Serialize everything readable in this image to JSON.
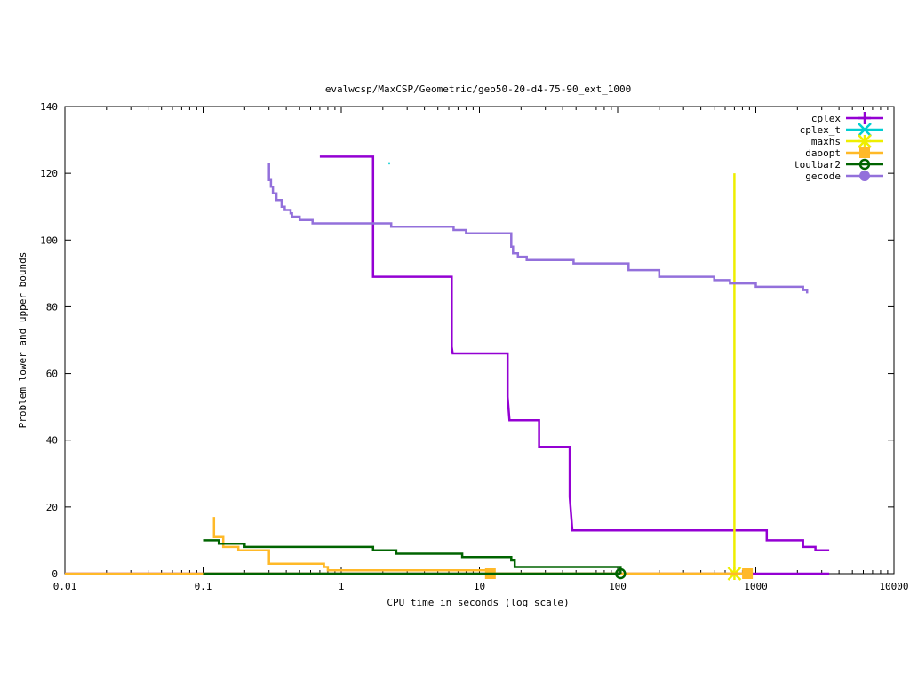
{
  "chart_data": {
    "type": "line",
    "title": "evalwcsp/MaxCSP/Geometric/geo50-20-d4-75-90_ext_1000",
    "xlabel": "CPU time in seconds (log scale)",
    "ylabel": "Problem lower and upper bounds",
    "xscale": "log",
    "xlim": [
      0.01,
      10000
    ],
    "ylim": [
      0,
      140
    ],
    "xticks": [
      {
        "value": 0.01,
        "label": "0.01"
      },
      {
        "value": 0.1,
        "label": "0.1"
      },
      {
        "value": 1,
        "label": "1"
      },
      {
        "value": 10,
        "label": "10"
      },
      {
        "value": 100,
        "label": "100"
      },
      {
        "value": 1000,
        "label": "1000"
      },
      {
        "value": 10000,
        "label": "10000"
      }
    ],
    "yticks": [
      {
        "value": 0,
        "label": "0"
      },
      {
        "value": 20,
        "label": "20"
      },
      {
        "value": 40,
        "label": "40"
      },
      {
        "value": 60,
        "label": "60"
      },
      {
        "value": 80,
        "label": "80"
      },
      {
        "value": 100,
        "label": "100"
      },
      {
        "value": 120,
        "label": "120"
      },
      {
        "value": 140,
        "label": "140"
      }
    ],
    "grid": false,
    "legend_position": "top-right",
    "series": [
      {
        "name": "cplex",
        "color": "#9400D3",
        "marker": "plus",
        "upper": [
          [
            0.7,
            125
          ],
          [
            1.7,
            125
          ],
          [
            1.7,
            89
          ],
          [
            6.3,
            89
          ],
          [
            6.3,
            68
          ],
          [
            6.4,
            66
          ],
          [
            16,
            66
          ],
          [
            16,
            53
          ],
          [
            16.5,
            46
          ],
          [
            27,
            46
          ],
          [
            27,
            38
          ],
          [
            45,
            38
          ],
          [
            45,
            23
          ],
          [
            47,
            13
          ],
          [
            1200,
            13
          ],
          [
            1200,
            10
          ],
          [
            2200,
            10
          ],
          [
            2200,
            8
          ],
          [
            2700,
            8
          ],
          [
            2700,
            7
          ],
          [
            3400,
            7
          ]
        ],
        "lower": [
          [
            0.01,
            0
          ],
          [
            3400,
            0
          ]
        ],
        "markers": []
      },
      {
        "name": "cplex_t",
        "color": "#00CED1",
        "marker": "cross",
        "upper": [
          [
            2.2,
            123
          ],
          [
            2.25,
            123
          ]
        ],
        "lower": [],
        "markers": []
      },
      {
        "name": "maxhs",
        "color": "#EEEE00",
        "marker": "asterisk",
        "upper": [
          [
            700,
            120
          ],
          [
            700,
            0
          ]
        ],
        "lower": [],
        "markers": [
          [
            700,
            0
          ]
        ]
      },
      {
        "name": "daoopt",
        "color": "#FFB928",
        "marker": "square",
        "upper": [
          [
            0.12,
            17
          ],
          [
            0.12,
            11
          ],
          [
            0.14,
            11
          ],
          [
            0.14,
            8
          ],
          [
            0.18,
            8
          ],
          [
            0.18,
            7
          ],
          [
            0.3,
            7
          ],
          [
            0.3,
            3
          ],
          [
            0.75,
            3
          ],
          [
            0.75,
            2
          ],
          [
            0.8,
            2
          ],
          [
            0.8,
            1
          ],
          [
            12,
            1
          ],
          [
            12,
            0
          ],
          [
            870,
            0
          ]
        ],
        "lower": [
          [
            0.01,
            0
          ],
          [
            870,
            0
          ]
        ],
        "markers": [
          [
            12,
            0
          ],
          [
            870,
            0
          ]
        ]
      },
      {
        "name": "toulbar2",
        "color": "#006400",
        "marker": "circle",
        "upper": [
          [
            0.1,
            10
          ],
          [
            0.13,
            10
          ],
          [
            0.13,
            9
          ],
          [
            0.2,
            9
          ],
          [
            0.2,
            8
          ],
          [
            1.7,
            8
          ],
          [
            1.7,
            7
          ],
          [
            2.5,
            7
          ],
          [
            2.5,
            6
          ],
          [
            7.5,
            6
          ],
          [
            7.5,
            5
          ],
          [
            17,
            5
          ],
          [
            17,
            4
          ],
          [
            18,
            4
          ],
          [
            18,
            2
          ],
          [
            105,
            2
          ],
          [
            105,
            0
          ]
        ],
        "lower": [
          [
            0.1,
            0
          ],
          [
            105,
            0
          ]
        ],
        "markers": [
          [
            105,
            0
          ]
        ]
      },
      {
        "name": "gecode",
        "color": "#9370DB",
        "marker": "disc",
        "upper": [
          [
            0.3,
            123
          ],
          [
            0.3,
            118
          ],
          [
            0.31,
            118
          ],
          [
            0.31,
            116
          ],
          [
            0.32,
            116
          ],
          [
            0.32,
            114
          ],
          [
            0.34,
            114
          ],
          [
            0.34,
            112
          ],
          [
            0.37,
            112
          ],
          [
            0.37,
            110
          ],
          [
            0.39,
            110
          ],
          [
            0.39,
            109
          ],
          [
            0.43,
            109
          ],
          [
            0.43,
            108
          ],
          [
            0.44,
            108
          ],
          [
            0.44,
            107
          ],
          [
            0.5,
            107
          ],
          [
            0.5,
            106
          ],
          [
            0.62,
            106
          ],
          [
            0.62,
            105
          ],
          [
            2.3,
            105
          ],
          [
            2.3,
            104
          ],
          [
            6.5,
            104
          ],
          [
            6.5,
            103
          ],
          [
            8,
            103
          ],
          [
            8,
            102
          ],
          [
            17,
            102
          ],
          [
            17,
            98
          ],
          [
            17.5,
            98
          ],
          [
            17.5,
            96
          ],
          [
            19,
            96
          ],
          [
            19,
            95
          ],
          [
            22,
            95
          ],
          [
            22,
            94
          ],
          [
            48,
            94
          ],
          [
            48,
            93
          ],
          [
            120,
            93
          ],
          [
            120,
            91
          ],
          [
            200,
            91
          ],
          [
            200,
            89
          ],
          [
            500,
            89
          ],
          [
            500,
            88
          ],
          [
            650,
            88
          ],
          [
            650,
            87
          ],
          [
            1000,
            87
          ],
          [
            1000,
            86
          ],
          [
            2200,
            86
          ],
          [
            2200,
            85
          ],
          [
            2350,
            85
          ],
          [
            2350,
            84
          ]
        ],
        "lower": [],
        "markers": []
      }
    ]
  }
}
